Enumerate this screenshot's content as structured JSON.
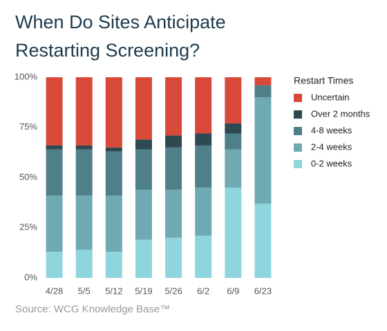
{
  "chart_data": {
    "type": "stacked_bar",
    "title": "When Do Sites Anticipate Restarting Screening?",
    "source": "Source: WCG Knowledge Base™",
    "legend_title": "Restart Times",
    "legend_position": "right",
    "categories": [
      "4/28",
      "5/5",
      "5/12",
      "5/19",
      "5/26",
      "6/2",
      "6/9",
      "6/23"
    ],
    "series": [
      {
        "name": "Uncertain",
        "color": "#d9493a",
        "values": [
          34,
          34,
          35,
          31,
          29,
          28,
          23,
          4
        ]
      },
      {
        "name": "Over 2 months",
        "color": "#2e4a50",
        "values": [
          2,
          2,
          2,
          5,
          6,
          6,
          5,
          0
        ]
      },
      {
        "name": "4-8 weeks",
        "color": "#4f7f88",
        "values": [
          23,
          23,
          22,
          20,
          21,
          21,
          8,
          6
        ]
      },
      {
        "name": "2-4 weeks",
        "color": "#6faab3",
        "values": [
          28,
          27,
          28,
          25,
          24,
          24,
          19,
          53
        ]
      },
      {
        "name": "0-2 weeks",
        "color": "#8fd5de",
        "values": [
          13,
          14,
          13,
          19,
          20,
          21,
          45,
          37
        ]
      }
    ],
    "ylim": [
      0,
      100
    ],
    "yticks": [
      {
        "value": 0,
        "label": "0%"
      },
      {
        "value": 25,
        "label": "25%"
      },
      {
        "value": 50,
        "label": "50%"
      },
      {
        "value": 75,
        "label": "75%"
      },
      {
        "value": 100,
        "label": "100%"
      }
    ]
  }
}
